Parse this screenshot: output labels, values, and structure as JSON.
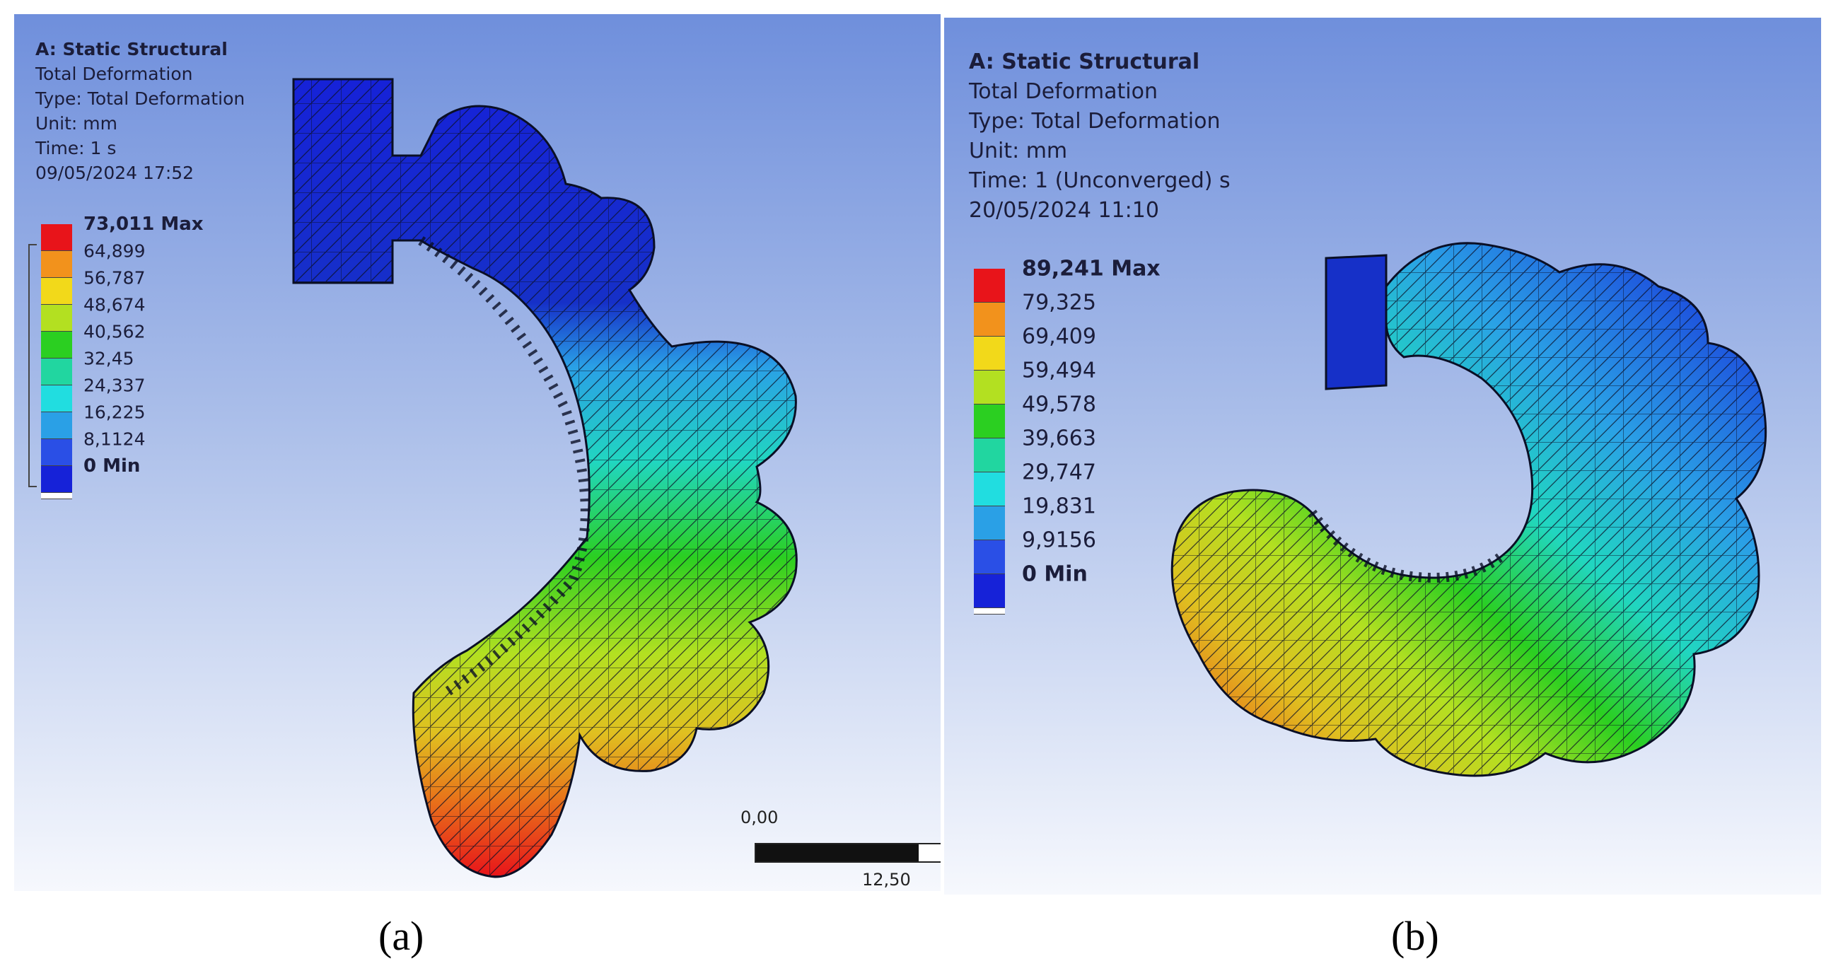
{
  "panel_a": {
    "title": "A: Static Structural",
    "result": "Total Deformation",
    "type": "Type: Total Deformation",
    "unit": "Unit: mm",
    "time": "Time: 1 s",
    "date": "09/05/2024 17:52",
    "legend": [
      "73,011 Max",
      "64,899",
      "56,787",
      "48,674",
      "40,562",
      "32,45",
      "24,337",
      "16,225",
      "8,1124",
      "0 Min"
    ],
    "scale": {
      "start": "0,00",
      "end": "12,50"
    },
    "caption": "(a)"
  },
  "panel_b": {
    "title": "A: Static Structural",
    "result": "Total Deformation",
    "type": "Type: Total Deformation",
    "unit": "Unit: mm",
    "time": "Time: 1 (Unconverged) s",
    "date": "20/05/2024 11:10",
    "legend": [
      "89,241 Max",
      "79,325",
      "69,409",
      "59,494",
      "49,578",
      "39,663",
      "29,747",
      "19,831",
      "9,9156",
      "0 Min"
    ],
    "caption": "(b)"
  },
  "colors": {
    "contour": [
      "#e8141a",
      "#f2921c",
      "#f2d91a",
      "#b3e021",
      "#2bcf21",
      "#21d6a0",
      "#21dde0",
      "#2aa0e6",
      "#2a4fe6",
      "#1622d8"
    ]
  }
}
